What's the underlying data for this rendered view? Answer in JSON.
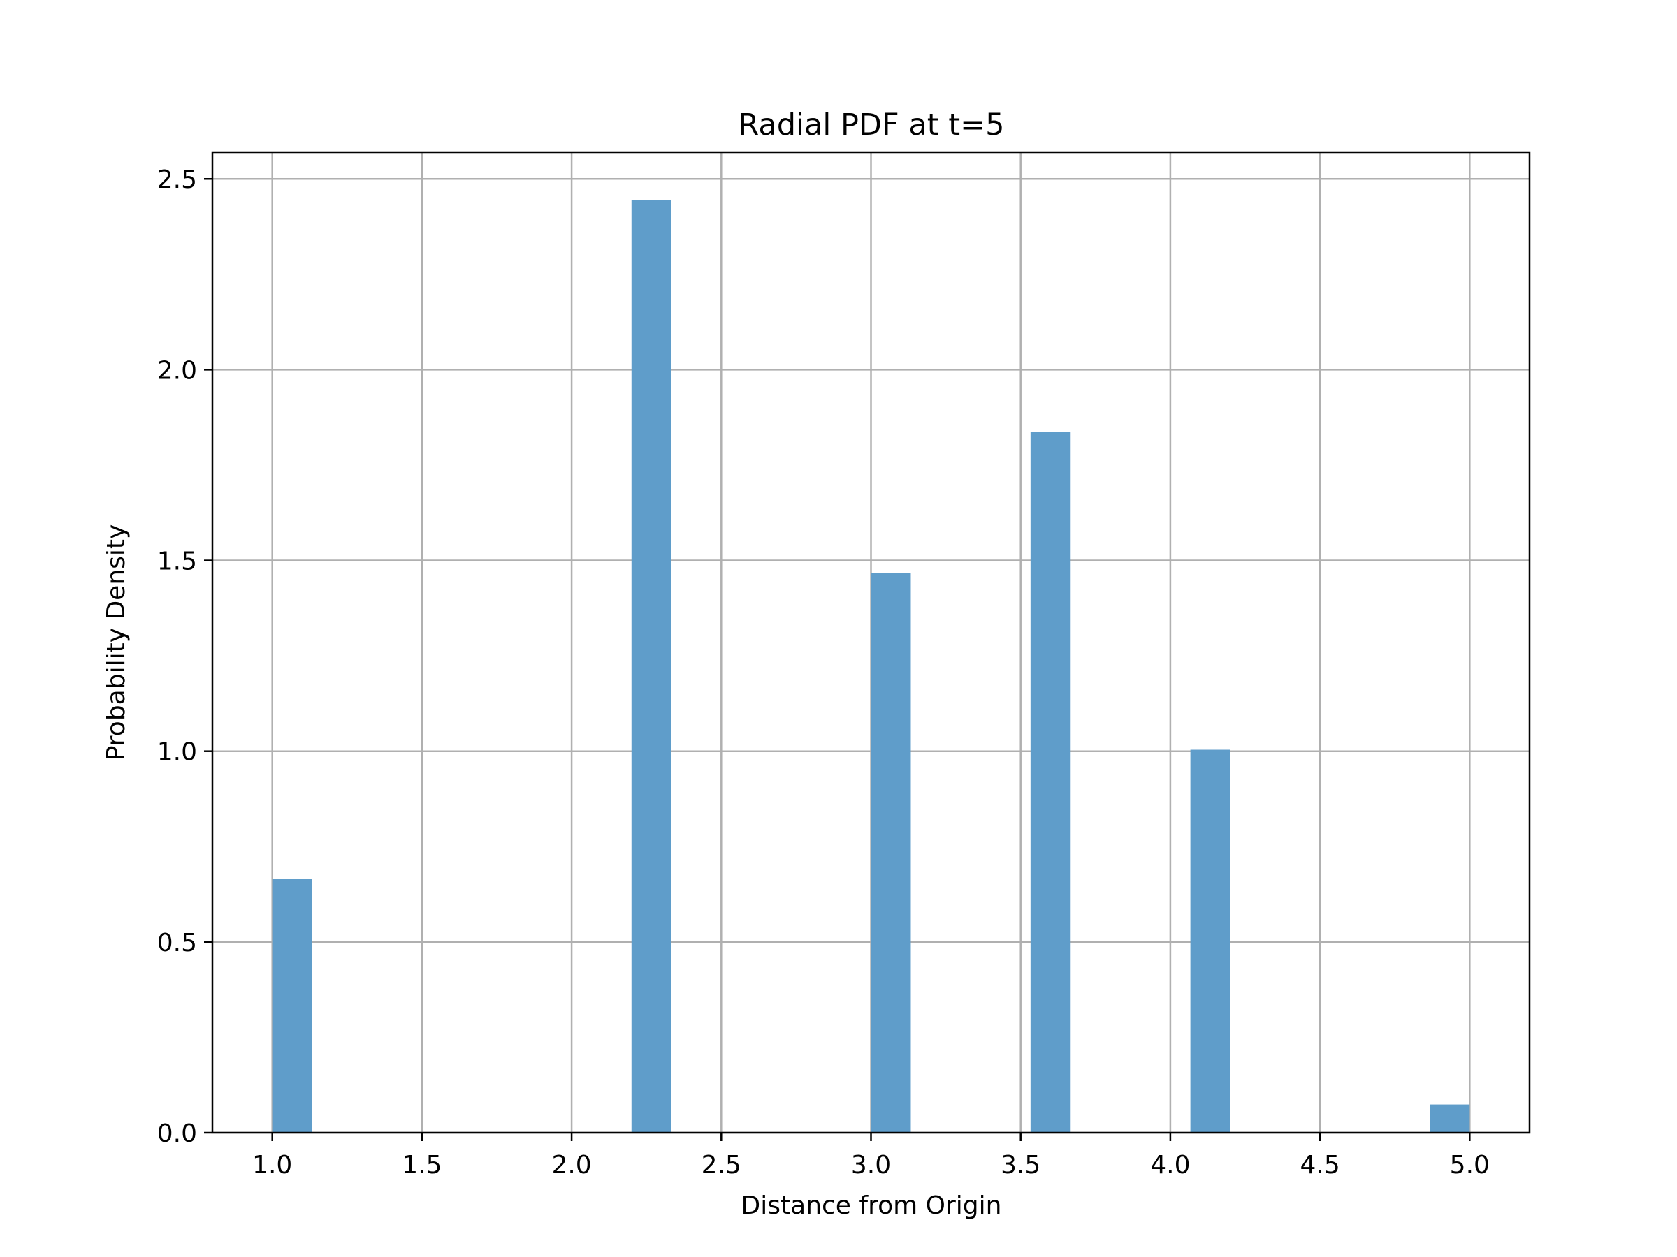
{
  "chart_data": {
    "type": "bar",
    "title": "Radial PDF at t=5",
    "xlabel": "Distance from Origin",
    "ylabel": "Probability Density",
    "xlim": [
      0.8,
      5.2
    ],
    "ylim": [
      0.0,
      2.57
    ],
    "xticks": [
      1.0,
      1.5,
      2.0,
      2.5,
      3.0,
      3.5,
      4.0,
      4.5,
      5.0
    ],
    "xtick_labels": [
      "1.0",
      "1.5",
      "2.0",
      "2.5",
      "3.0",
      "3.5",
      "4.0",
      "4.5",
      "5.0"
    ],
    "yticks": [
      0.0,
      0.5,
      1.0,
      1.5,
      2.0,
      2.5
    ],
    "ytick_labels": [
      "0.0",
      "0.5",
      "1.0",
      "1.5",
      "2.0",
      "2.5"
    ],
    "grid": true,
    "bar_color": "#5f9dca",
    "bins": [
      {
        "left": 1.0,
        "right": 1.133,
        "value": 0.665
      },
      {
        "left": 2.2,
        "right": 2.333,
        "value": 2.445
      },
      {
        "left": 3.0,
        "right": 3.133,
        "value": 1.468
      },
      {
        "left": 3.533,
        "right": 3.667,
        "value": 1.836
      },
      {
        "left": 4.067,
        "right": 4.2,
        "value": 1.004
      },
      {
        "left": 4.867,
        "right": 5.0,
        "value": 0.074
      }
    ]
  }
}
